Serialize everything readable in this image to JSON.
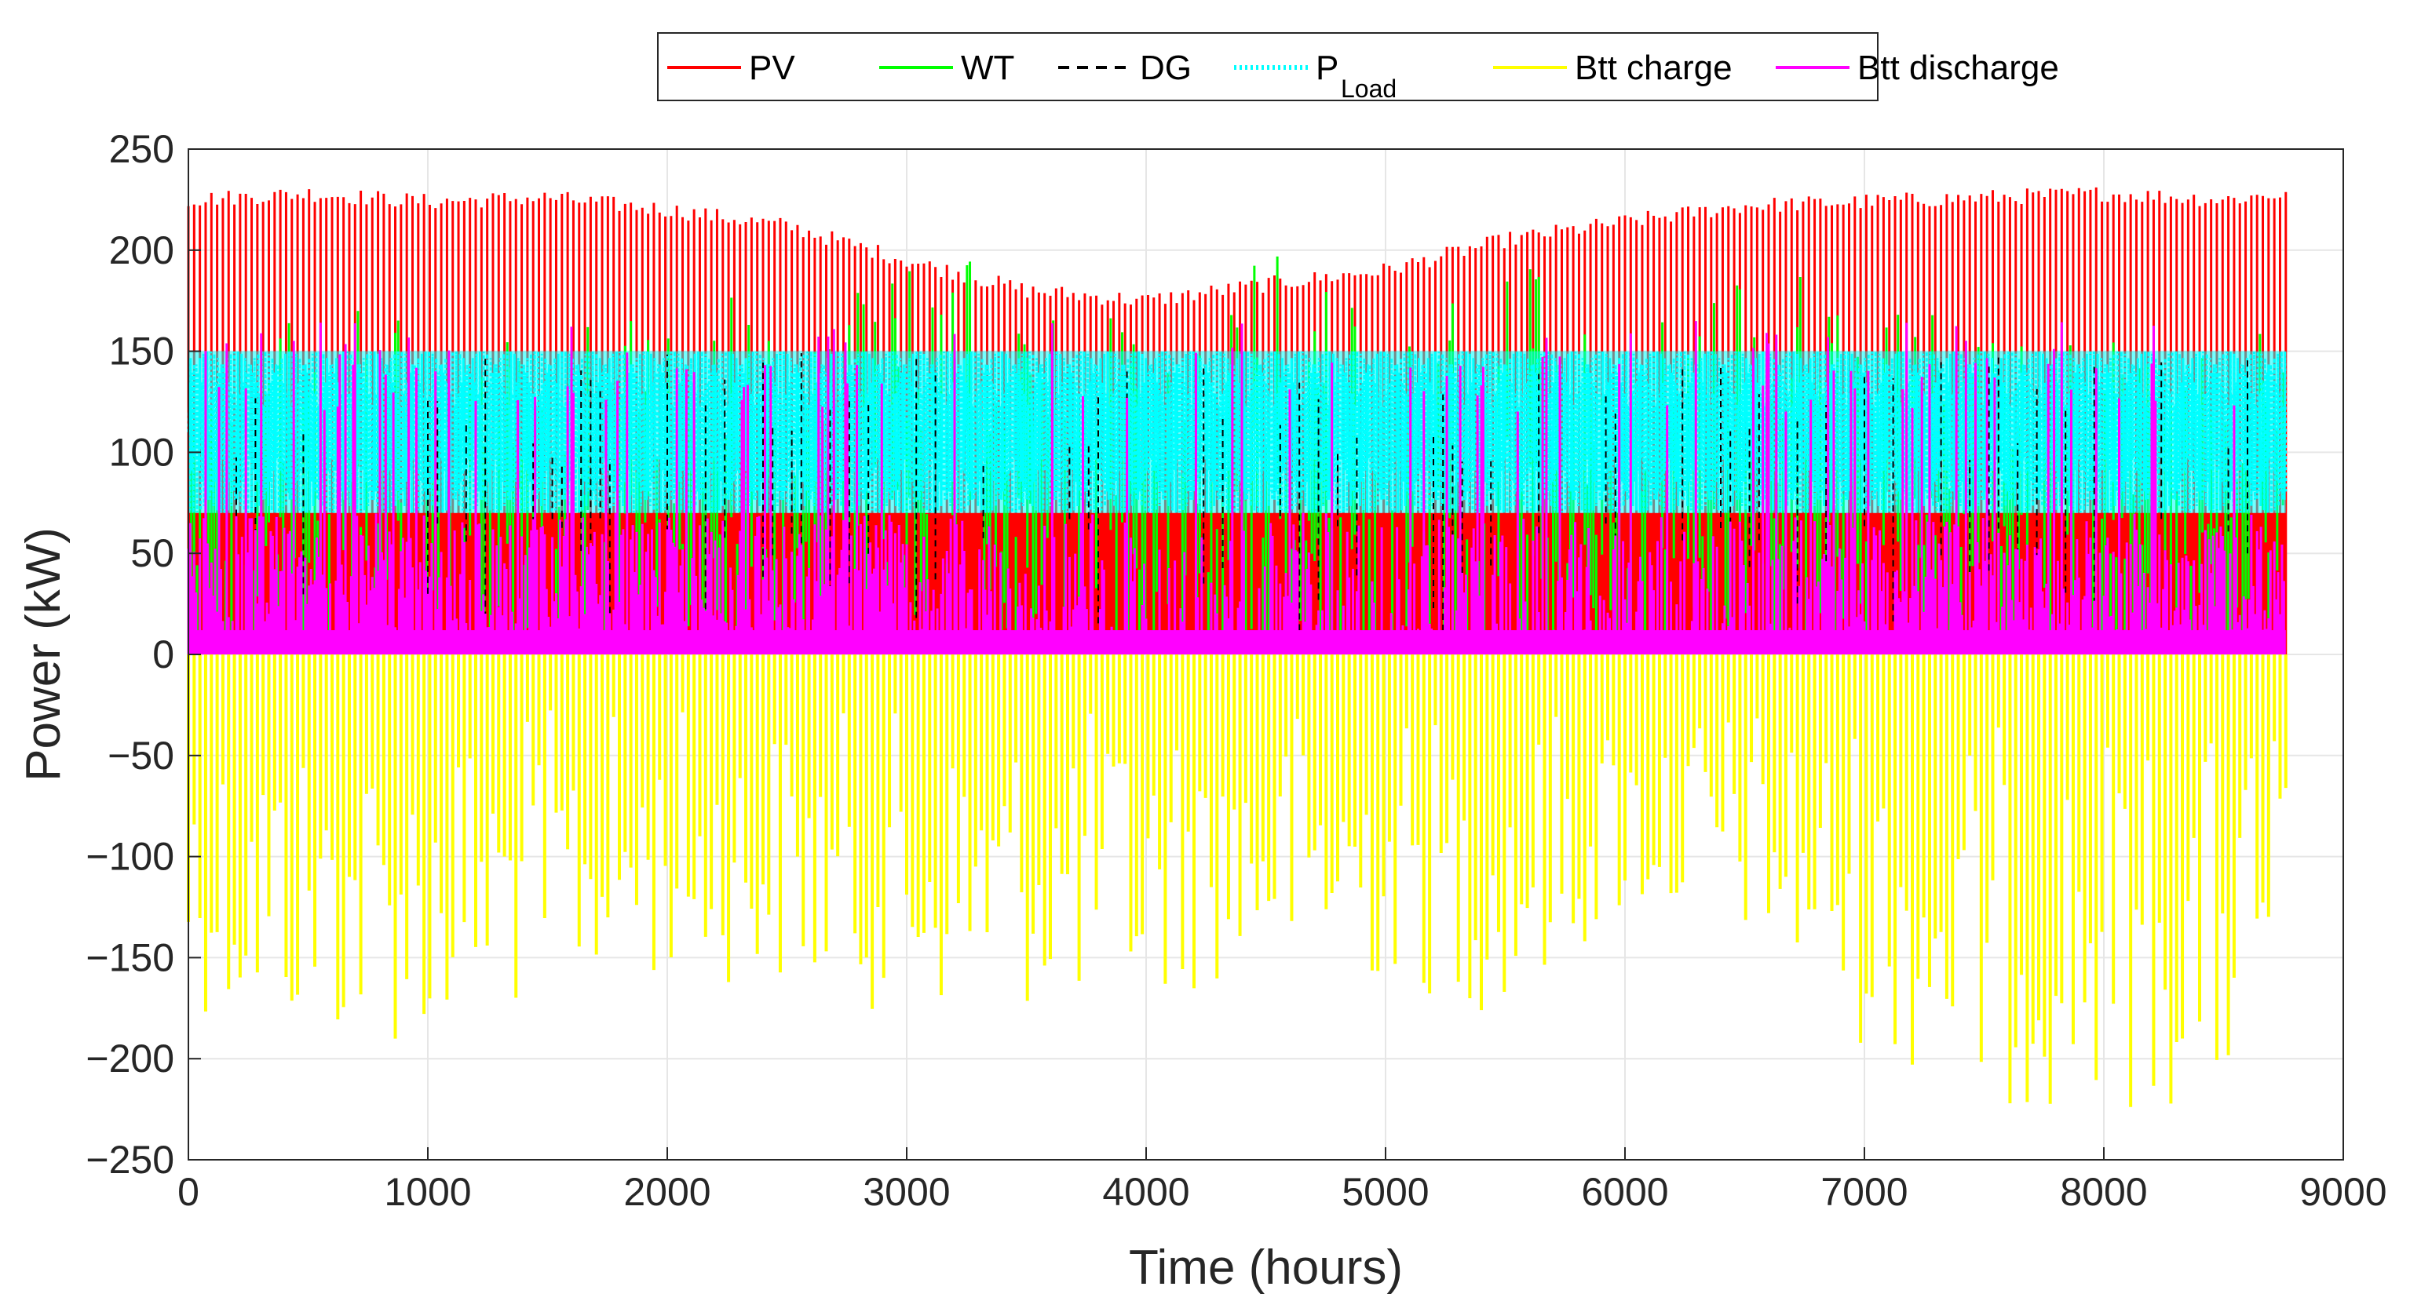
{
  "chart_data": {
    "type": "area",
    "title": "",
    "xlabel": "Time (hours)",
    "ylabel": "Power (kW)",
    "xlim": [
      0,
      9000
    ],
    "ylim": [
      -250,
      250
    ],
    "xticks": [
      0,
      1000,
      2000,
      3000,
      4000,
      5000,
      6000,
      7000,
      8000,
      9000
    ],
    "yticks": [
      250,
      200,
      150,
      100,
      50,
      0,
      -50,
      -100,
      -150,
      -200,
      -250
    ],
    "ytick_labels": [
      "250",
      "200",
      "150",
      "100",
      "50",
      "0",
      "−50",
      "−100",
      "−150",
      "−200",
      "−250"
    ],
    "grid": true,
    "legend_position": "top-center (outside)",
    "legend": [
      {
        "key": "pv",
        "label": "PV",
        "color": "#ff0000",
        "style": "solid"
      },
      {
        "key": "wt",
        "label": "WT",
        "color": "#00ff00",
        "style": "solid"
      },
      {
        "key": "dg",
        "label": "DG",
        "color": "#000000",
        "style": "dashed"
      },
      {
        "key": "pload",
        "label": "P",
        "subscript": "Load",
        "color": "#00ffff",
        "style": "dotted"
      },
      {
        "key": "btt_charge",
        "label": "Btt charge",
        "color": "#ffff00",
        "style": "solid"
      },
      {
        "key": "btt_discharge",
        "label": "Btt discharge",
        "color": "#ff00ff",
        "style": "solid"
      }
    ],
    "x_end_hours": 8760,
    "series": [
      {
        "name": "PV",
        "description": "daily peak envelope (kW) sampled every 500 h",
        "x": [
          0,
          500,
          1000,
          1500,
          2000,
          2500,
          3000,
          3500,
          4000,
          4500,
          5000,
          5500,
          6000,
          6500,
          7000,
          7500,
          8000,
          8500,
          8760
        ],
        "values": [
          225,
          228,
          224,
          226,
          220,
          212,
          195,
          180,
          175,
          183,
          190,
          205,
          214,
          222,
          224,
          226,
          228,
          225,
          228
        ]
      },
      {
        "name": "WT",
        "description": "representative peaks (kW)",
        "x": [
          300,
          550,
          800,
          1450,
          1800,
          2400,
          2900,
          3200,
          3730,
          4400,
          4850,
          5300,
          5550,
          6050,
          6350,
          6800,
          7200,
          7400
        ],
        "values": [
          170,
          190,
          180,
          198,
          175,
          190,
          200,
          195,
          200,
          200,
          200,
          200,
          195,
          175,
          200,
          190,
          195,
          155
        ]
      },
      {
        "name": "DG",
        "description": "dispatch band (kW)",
        "values_range": [
          70,
          150
        ]
      },
      {
        "name": "P_Load",
        "description": "load band min/max (kW)",
        "values_range": [
          70,
          150
        ]
      },
      {
        "name": "Btt charge",
        "description": "minimum (most negative) envelope (kW)",
        "x": [
          0,
          500,
          1000,
          1500,
          2000,
          2500,
          3000,
          3500,
          4000,
          4500,
          5000,
          5500,
          6000,
          6500,
          7000,
          7500,
          8000,
          8500,
          8760
        ],
        "values": [
          -175,
          -190,
          -195,
          -170,
          -160,
          -165,
          -180,
          -175,
          -175,
          -155,
          -165,
          -180,
          -130,
          -140,
          -195,
          -225,
          -225,
          -225,
          -150
        ]
      },
      {
        "name": "Btt discharge",
        "description": "maximum envelope (kW)",
        "values_range": [
          0,
          165
        ]
      }
    ]
  }
}
